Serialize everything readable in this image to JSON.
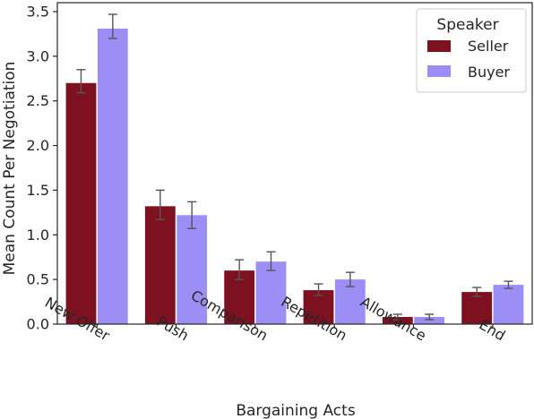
{
  "chart_data": {
    "type": "bar",
    "xlabel": "Bargaining Acts",
    "ylabel": "Mean Count Per Negotiation",
    "ylim": [
      0,
      3.6
    ],
    "yticks": [
      "0.0",
      "0.5",
      "1.0",
      "1.5",
      "2.0",
      "2.5",
      "3.0",
      "3.5"
    ],
    "categories": [
      "New Offer",
      "Push",
      "Comparison",
      "Repetition",
      "Allowance",
      "End"
    ],
    "series": [
      {
        "name": "Seller",
        "color": "#7d111f",
        "values": [
          2.7,
          1.32,
          0.6,
          0.38,
          0.08,
          0.36
        ],
        "err_low": [
          2.59,
          1.17,
          0.5,
          0.32,
          0.05,
          0.31
        ],
        "err_high": [
          2.85,
          1.5,
          0.72,
          0.45,
          0.11,
          0.41
        ]
      },
      {
        "name": "Buyer",
        "color": "#9b8ef5",
        "values": [
          3.31,
          1.22,
          0.7,
          0.5,
          0.08,
          0.44
        ],
        "err_low": [
          3.2,
          1.07,
          0.6,
          0.42,
          0.05,
          0.4
        ],
        "err_high": [
          3.47,
          1.37,
          0.81,
          0.58,
          0.11,
          0.48
        ]
      }
    ],
    "legend": {
      "title": "Speaker",
      "position": "top-right"
    },
    "grid": false
  }
}
